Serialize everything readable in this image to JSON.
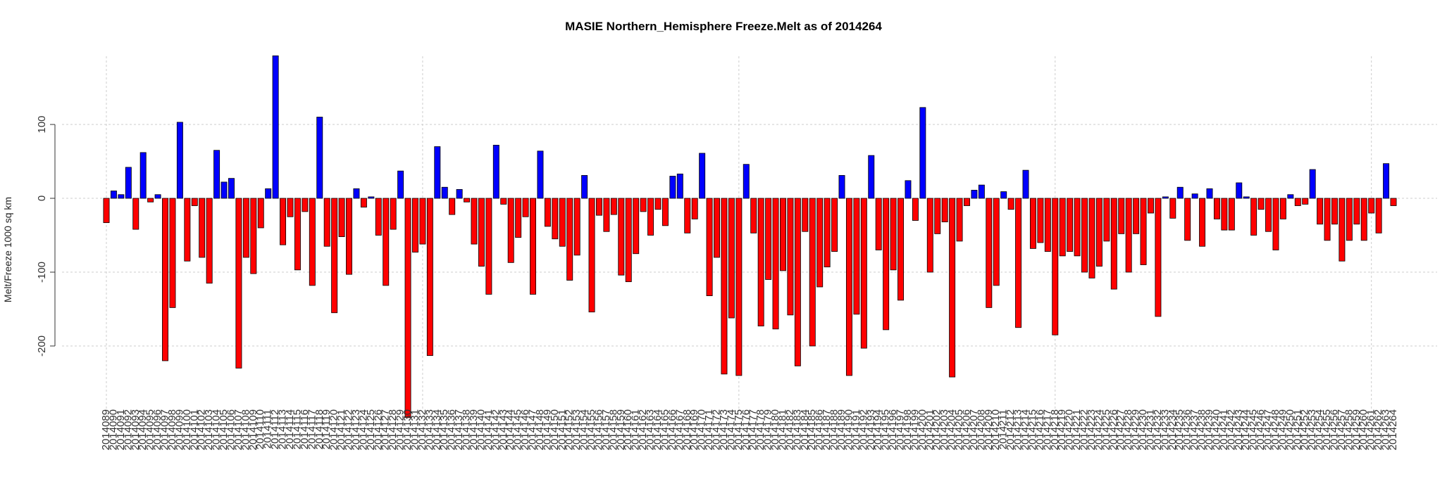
{
  "chart_data": {
    "type": "bar",
    "title": "MASIE Northern_Hemisphere Freeze.Melt as of 2014264",
    "xlabel": "",
    "ylabel": "Melt/Freeze 1000 sq km",
    "ylim": [
      -300,
      200
    ],
    "yticks": [
      -200,
      -100,
      0,
      100
    ],
    "grid": true,
    "colors": {
      "positive": "#0000ff",
      "negative": "#ff0000",
      "grid": "#cccccc"
    },
    "start_day": 2014089,
    "end_day": 2014264,
    "categories": [
      "2014089",
      "2014090",
      "2014091",
      "2014092",
      "2014093",
      "2014094",
      "2014095",
      "2014096",
      "2014097",
      "2014098",
      "2014099",
      "2014100",
      "2014101",
      "2014102",
      "2014103",
      "2014104",
      "2014105",
      "2014106",
      "2014107",
      "2014108",
      "2014109",
      "2014110",
      "2014111",
      "2014112",
      "2014113",
      "2014114",
      "2014115",
      "2014116",
      "2014117",
      "2014118",
      "2014119",
      "2014120",
      "2014121",
      "2014122",
      "2014123",
      "2014124",
      "2014125",
      "2014126",
      "2014127",
      "2014128",
      "2014129",
      "2014130",
      "2014131",
      "2014132",
      "2014133",
      "2014134",
      "2014135",
      "2014136",
      "2014137",
      "2014138",
      "2014139",
      "2014140",
      "2014141",
      "2014142",
      "2014143",
      "2014144",
      "2014145",
      "2014146",
      "2014147",
      "2014148",
      "2014149",
      "2014150",
      "2014151",
      "2014152",
      "2014153",
      "2014154",
      "2014155",
      "2014156",
      "2014157",
      "2014158",
      "2014159",
      "2014160",
      "2014161",
      "2014162",
      "2014163",
      "2014164",
      "2014165",
      "2014166",
      "2014167",
      "2014168",
      "2014169",
      "2014170",
      "2014171",
      "2014172",
      "2014173",
      "2014174",
      "2014175",
      "2014176",
      "2014177",
      "2014178",
      "2014179",
      "2014180",
      "2014181",
      "2014182",
      "2014183",
      "2014184",
      "2014185",
      "2014186",
      "2014187",
      "2014188",
      "2014189",
      "2014190",
      "2014191",
      "2014192",
      "2014193",
      "2014194",
      "2014195",
      "2014196",
      "2014197",
      "2014198",
      "2014199",
      "2014200",
      "2014201",
      "2014202",
      "2014203",
      "2014204",
      "2014205",
      "2014206",
      "2014207",
      "2014208",
      "2014209",
      "2014210",
      "2014211",
      "2014212",
      "2014213",
      "2014214",
      "2014215",
      "2014216",
      "2014217",
      "2014218",
      "2014219",
      "2014220",
      "2014221",
      "2014222",
      "2014223",
      "2014224",
      "2014225",
      "2014226",
      "2014227",
      "2014228",
      "2014229",
      "2014230",
      "2014231",
      "2014232",
      "2014233",
      "2014234",
      "2014235",
      "2014236",
      "2014237",
      "2014238",
      "2014239",
      "2014240",
      "2014241",
      "2014242",
      "2014243",
      "2014244",
      "2014245",
      "2014246",
      "2014247",
      "2014248",
      "2014249",
      "2014250",
      "2014251",
      "2014252",
      "2014253",
      "2014254",
      "2014255",
      "2014256",
      "2014257",
      "2014258",
      "2014259",
      "2014260",
      "2014261",
      "2014262",
      "2014263",
      "2014264"
    ],
    "values": [
      -33,
      10,
      5,
      42,
      -42,
      62,
      -5,
      5,
      -220,
      -148,
      103,
      -85,
      -10,
      -80,
      -115,
      65,
      22,
      27,
      -230,
      -80,
      -102,
      -40,
      13,
      193,
      -63,
      -25,
      -97,
      -18,
      -118,
      110,
      -65,
      -155,
      -52,
      -103,
      13,
      -12,
      2,
      -50,
      -118,
      -42,
      37,
      -297,
      -73,
      -62,
      -213,
      70,
      15,
      -22,
      12,
      -5,
      -62,
      -92,
      -130,
      72,
      -8,
      -87,
      -53,
      -25,
      -130,
      64,
      -38,
      -55,
      -65,
      -111,
      -77,
      31,
      -154,
      -23,
      -45,
      -22,
      -104,
      -113,
      -75,
      -18,
      -50,
      -15,
      -37,
      30,
      33,
      -47,
      -28,
      61,
      -132,
      -80,
      -238,
      -162,
      -240,
      46,
      -47,
      -173,
      -110,
      -177,
      -98,
      -158,
      -227,
      -45,
      -200,
      -120,
      -93,
      -72,
      31,
      -240,
      -157,
      -203,
      58,
      -70,
      -178,
      -97,
      -138,
      24,
      -30,
      123,
      -100,
      -48,
      -32,
      -242,
      -58,
      -10,
      11,
      18,
      -148,
      -118,
      9,
      -15,
      -175,
      38,
      -68,
      -60,
      -72,
      -185,
      -78,
      -72,
      -78,
      -100,
      -108,
      -92,
      -58,
      -123,
      -48,
      -100,
      -48,
      -90,
      -20,
      -160,
      2,
      -27,
      15,
      -57,
      6,
      -65,
      13,
      -28,
      -43,
      -43,
      21,
      2,
      -50,
      -15,
      -45,
      -70,
      -28,
      5,
      -10,
      -8,
      39,
      -35,
      -57,
      -35,
      -85,
      -57,
      -35,
      -57,
      -20,
      -47,
      47,
      -10
    ]
  }
}
